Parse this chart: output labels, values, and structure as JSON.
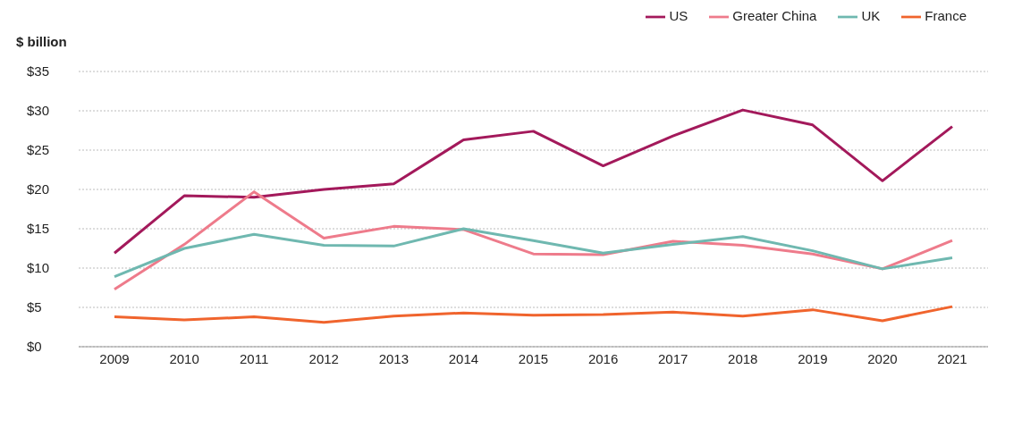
{
  "chart_data": {
    "type": "line",
    "ylabel": "$ billion",
    "categories": [
      "2009",
      "2010",
      "2011",
      "2012",
      "2013",
      "2014",
      "2015",
      "2016",
      "2017",
      "2018",
      "2019",
      "2020",
      "2021"
    ],
    "series": [
      {
        "name": "US",
        "color": "#a3195b",
        "values": [
          11.9,
          19.2,
          19,
          20,
          20.7,
          26.3,
          27.4,
          23,
          26.8,
          30.1,
          28.2,
          21.1,
          28
        ]
      },
      {
        "name": "Greater China",
        "color": "#ee7b8b",
        "values": [
          7.3,
          13,
          19.7,
          13.8,
          15.3,
          14.9,
          11.8,
          11.7,
          13.4,
          12.9,
          11.8,
          9.9,
          13.5
        ]
      },
      {
        "name": "UK",
        "color": "#6fb8b0",
        "values": [
          8.9,
          12.5,
          14.3,
          12.9,
          12.8,
          15,
          13.5,
          11.9,
          13,
          14,
          12.2,
          9.9,
          11.3
        ]
      },
      {
        "name": "France",
        "color": "#f0642d",
        "values": [
          3.8,
          3.4,
          3.8,
          3.1,
          3.9,
          4.3,
          4,
          4.1,
          4.4,
          3.9,
          4.7,
          3.3,
          5.1
        ]
      }
    ],
    "ylim": [
      0,
      35
    ],
    "yticks": [
      {
        "value": 0,
        "label": "$0"
      },
      {
        "value": 5,
        "label": "$5"
      },
      {
        "value": 10,
        "label": "$10"
      },
      {
        "value": 15,
        "label": "$15"
      },
      {
        "value": 20,
        "label": "$20"
      },
      {
        "value": 25,
        "label": "$25"
      },
      {
        "value": 30,
        "label": "$30"
      },
      {
        "value": 35,
        "label": "$35"
      }
    ],
    "grid": "y",
    "legend": "top right",
    "marker": "none",
    "line_style": "solid"
  }
}
